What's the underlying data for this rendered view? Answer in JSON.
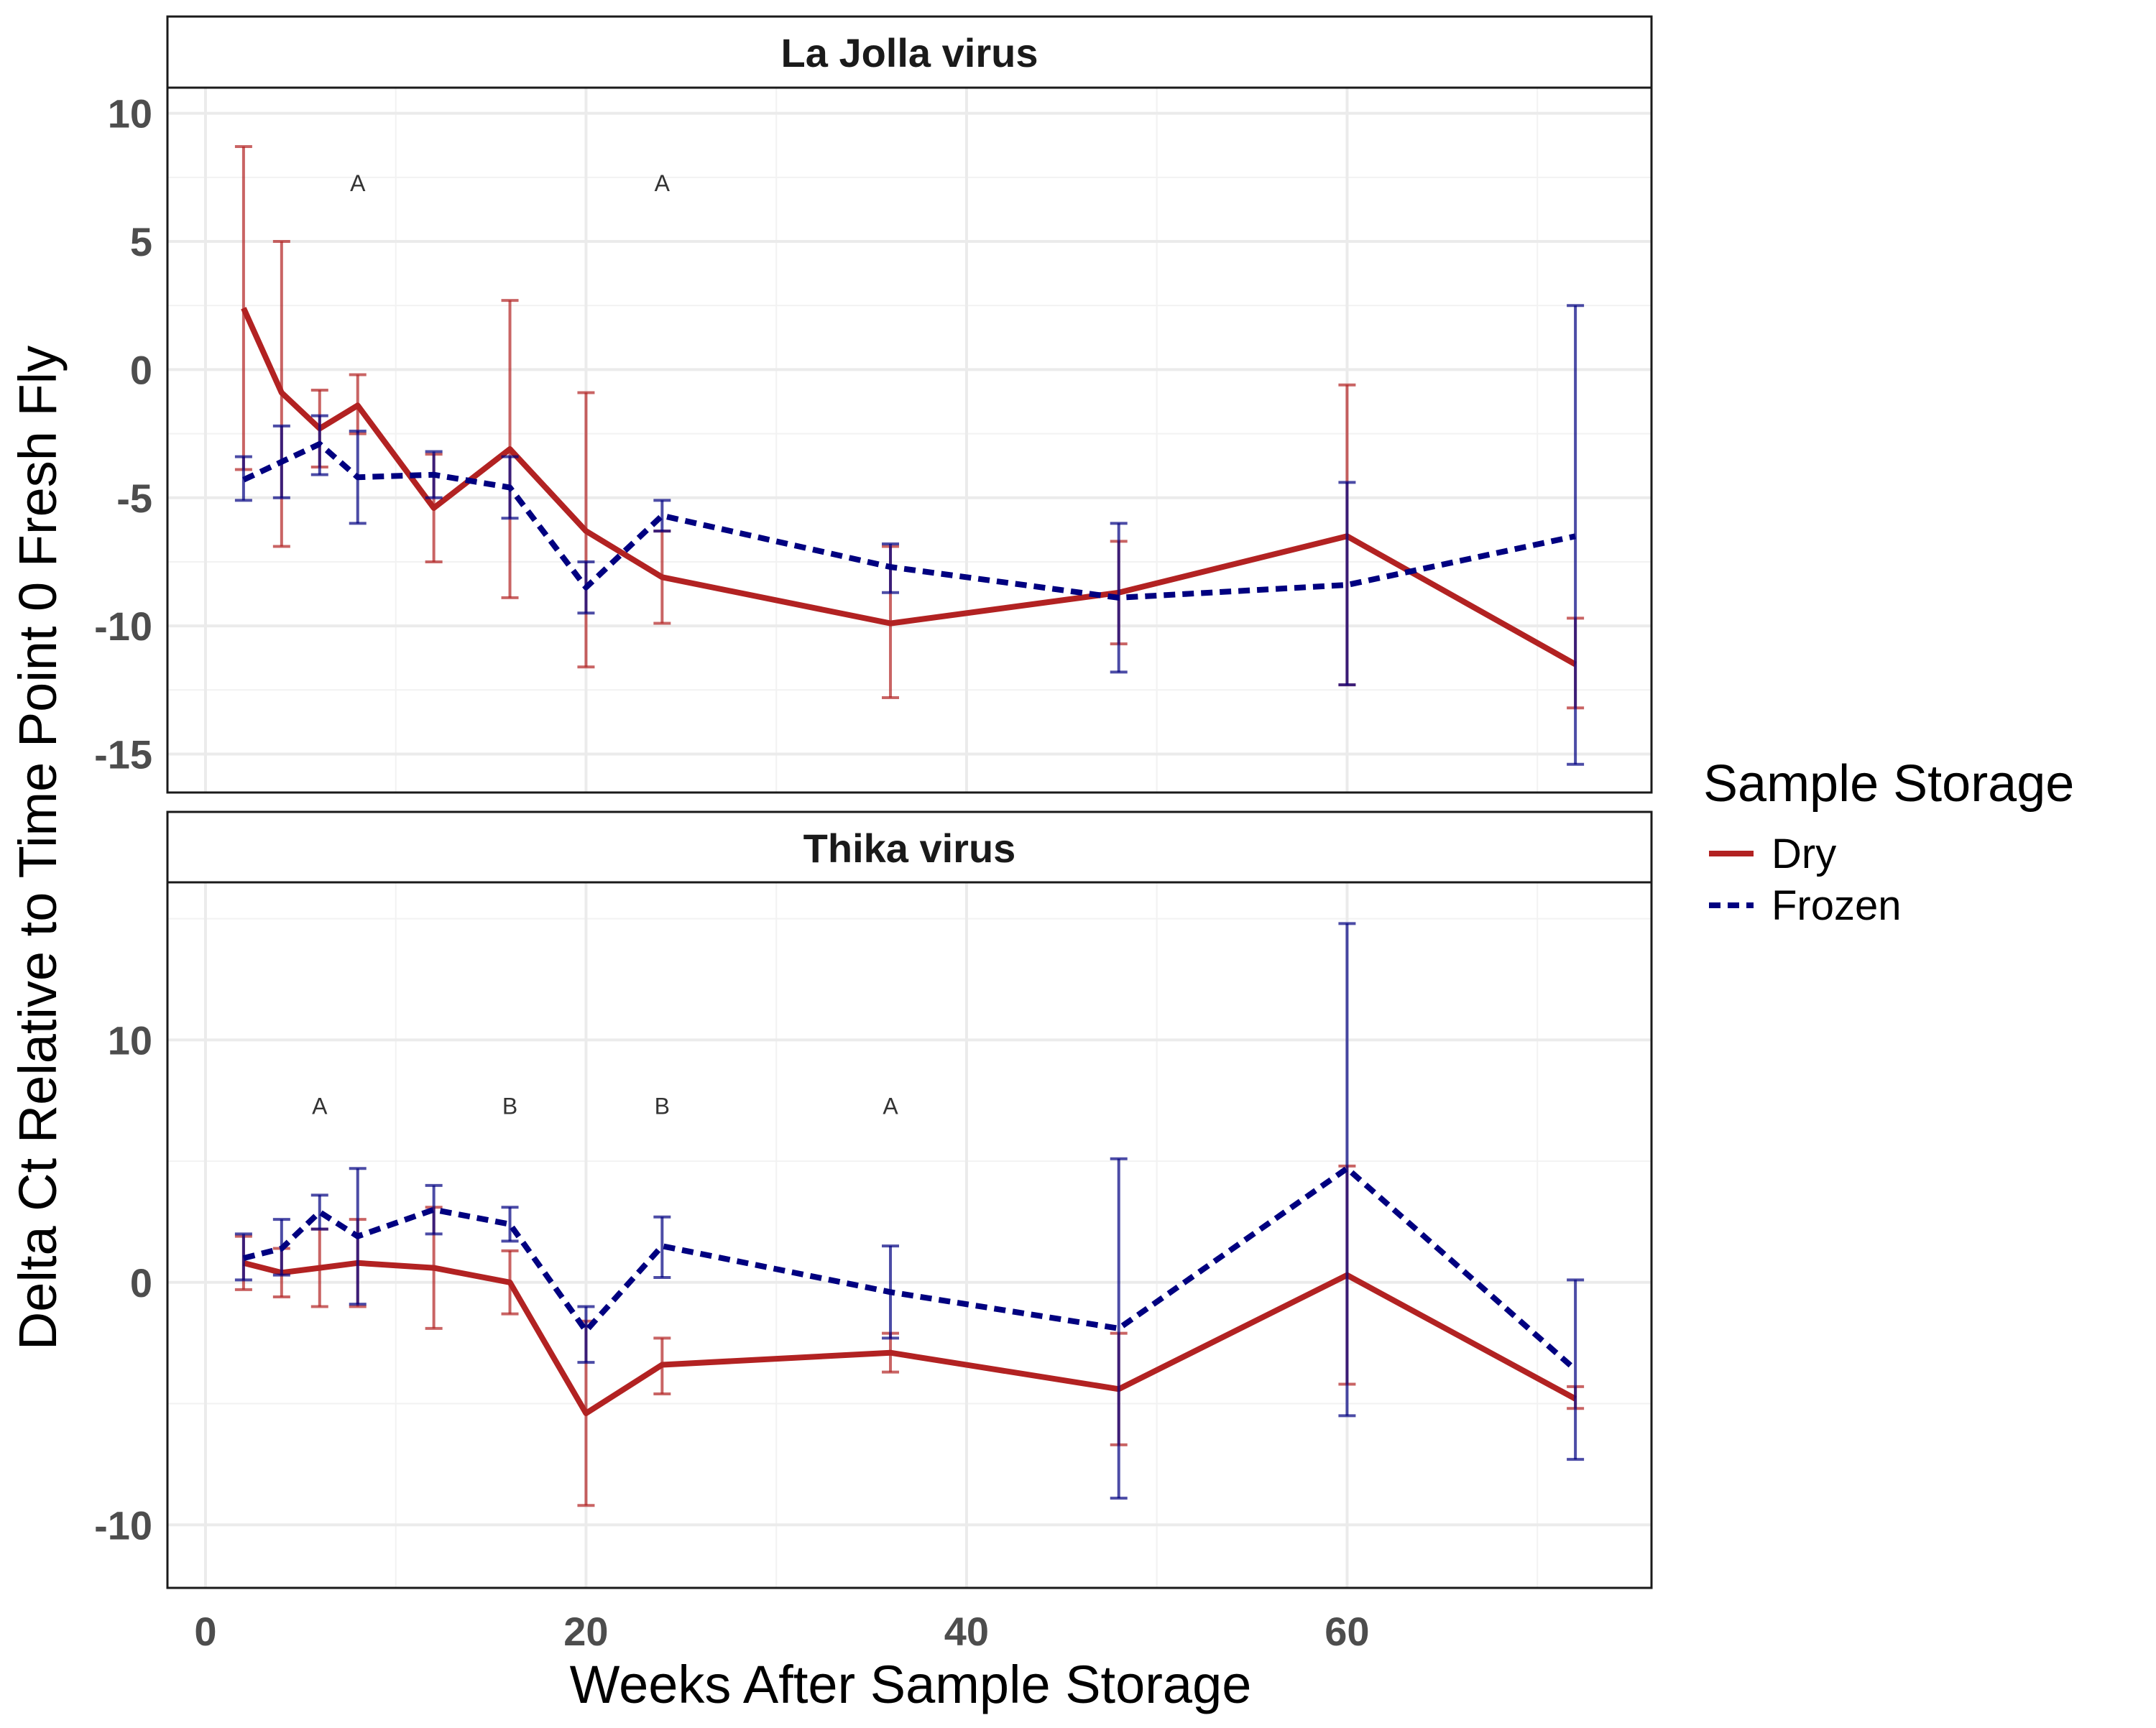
{
  "chart_data": {
    "type": "line",
    "xlabel": "Weeks After Sample Storage",
    "ylabel": "Delta Ct Relative to Time Point 0 Fresh Fly",
    "xlim": [
      -2,
      76
    ],
    "x_ticks": [
      0,
      20,
      40,
      60
    ],
    "grid": true,
    "legend": {
      "title": "Sample Storage",
      "position": "right",
      "entries": [
        {
          "label": "Dry",
          "color": "#b22222",
          "style": "solid"
        },
        {
          "label": "Frozen",
          "color": "#000080",
          "style": "dashed"
        }
      ]
    },
    "panels": [
      {
        "title": "La Jolla virus",
        "ylim": [
          -16.5,
          11
        ],
        "y_ticks": [
          -15,
          -10,
          -5,
          0,
          5,
          10
        ],
        "series": [
          {
            "name": "Dry",
            "color": "#b22222",
            "style": "solid",
            "x": [
              2,
              4,
              6,
              8,
              12,
              16,
              20,
              24,
              36,
              48,
              60,
              72
            ],
            "y": [
              2.4,
              -0.9,
              -2.3,
              -1.4,
              -5.4,
              -3.1,
              -6.3,
              -8.1,
              -9.9,
              -8.7,
              -6.5,
              -11.5
            ],
            "lo": [
              -3.9,
              -6.9,
              -3.8,
              -2.5,
              -7.5,
              -8.9,
              -11.6,
              -9.9,
              -12.8,
              -10.7,
              -12.3,
              -13.2
            ],
            "hi": [
              8.7,
              5.0,
              -0.8,
              -0.2,
              -3.3,
              2.7,
              -0.9,
              -6.3,
              -6.9,
              -6.7,
              -0.6,
              -9.7
            ]
          },
          {
            "name": "Frozen",
            "color": "#000080",
            "style": "dashed",
            "x": [
              2,
              4,
              6,
              8,
              12,
              16,
              20,
              24,
              36,
              48,
              60,
              72
            ],
            "y": [
              -4.3,
              -3.6,
              -2.9,
              -4.2,
              -4.1,
              -4.6,
              -8.5,
              -5.7,
              -7.7,
              -8.9,
              -8.4,
              -6.5
            ],
            "lo": [
              -5.1,
              -5.0,
              -4.1,
              -6.0,
              -5.0,
              -5.8,
              -9.5,
              -6.3,
              -8.7,
              -11.8,
              -12.3,
              -15.4
            ],
            "hi": [
              -3.4,
              -2.2,
              -1.8,
              -2.4,
              -3.2,
              -3.4,
              -7.5,
              -5.1,
              -6.8,
              -6.0,
              -4.4,
              2.5
            ]
          }
        ],
        "annotations": [
          {
            "x": 8,
            "y": 7.3,
            "text": "A"
          },
          {
            "x": 24,
            "y": 7.3,
            "text": "A"
          }
        ]
      },
      {
        "title": "Thika virus",
        "ylim": [
          -12.6,
          16.5
        ],
        "y_ticks": [
          -10,
          0,
          10
        ],
        "series": [
          {
            "name": "Dry",
            "color": "#b22222",
            "style": "solid",
            "x": [
              2,
              4,
              6,
              8,
              12,
              16,
              20,
              24,
              36,
              48,
              60,
              72
            ],
            "y": [
              0.8,
              0.4,
              0.6,
              0.8,
              0.6,
              0.0,
              -5.4,
              -3.4,
              -2.9,
              -4.4,
              0.3,
              -4.8
            ],
            "lo": [
              -0.3,
              -0.6,
              -1.0,
              -1.0,
              -1.9,
              -1.3,
              -9.2,
              -4.6,
              -3.7,
              -6.7,
              -4.2,
              -5.2
            ],
            "hi": [
              1.9,
              1.4,
              2.2,
              2.6,
              3.1,
              1.3,
              -1.6,
              -2.3,
              -2.1,
              -2.1,
              4.8,
              -4.3
            ]
          },
          {
            "name": "Frozen",
            "color": "#000080",
            "style": "dashed",
            "x": [
              2,
              4,
              6,
              8,
              12,
              16,
              20,
              24,
              36,
              48,
              60,
              72
            ],
            "y": [
              1.0,
              1.4,
              2.9,
              1.9,
              3.0,
              2.4,
              -2.0,
              1.5,
              -0.4,
              -1.9,
              4.7,
              -3.6
            ],
            "lo": [
              0.1,
              0.3,
              2.2,
              -0.9,
              2.0,
              1.7,
              -3.3,
              0.2,
              -2.3,
              -8.9,
              -5.5,
              -7.3
            ],
            "hi": [
              2.0,
              2.6,
              3.6,
              4.7,
              4.0,
              3.1,
              -1.0,
              2.7,
              1.5,
              5.1,
              14.8,
              0.1
            ]
          }
        ],
        "annotations": [
          {
            "x": 6,
            "y": 7.3,
            "text": "A"
          },
          {
            "x": 16,
            "y": 7.3,
            "text": "B"
          },
          {
            "x": 24,
            "y": 7.3,
            "text": "B"
          },
          {
            "x": 36,
            "y": 7.3,
            "text": "A"
          }
        ]
      }
    ]
  }
}
